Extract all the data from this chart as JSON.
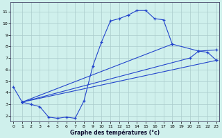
{
  "xlabel": "Graphe des températures (°c)",
  "background_color": "#cff0ec",
  "grid_color": "#aacccc",
  "line_color": "#2244cc",
  "ylim": [
    1.5,
    11.8
  ],
  "xlim": [
    -0.3,
    23.3
  ],
  "yticks": [
    2,
    3,
    4,
    5,
    6,
    7,
    8,
    9,
    10,
    11
  ],
  "xticks": [
    0,
    1,
    2,
    3,
    4,
    5,
    6,
    7,
    8,
    9,
    10,
    11,
    12,
    13,
    14,
    15,
    16,
    17,
    18,
    19,
    20,
    21,
    22,
    23
  ],
  "curve1_x": [
    0,
    1,
    2,
    3,
    4,
    5,
    6,
    7,
    8,
    9,
    10,
    11,
    12,
    13,
    14,
    15,
    16,
    17,
    18
  ],
  "curve1_y": [
    4.5,
    3.2,
    3.0,
    2.8,
    1.9,
    1.8,
    1.9,
    1.8,
    3.3,
    6.3,
    8.4,
    10.2,
    10.4,
    10.7,
    11.1,
    11.1,
    10.4,
    10.3,
    8.2
  ],
  "curve2_x": [
    1,
    23
  ],
  "curve2_y": [
    3.2,
    6.8
  ],
  "curve3_x": [
    1,
    20,
    21,
    23
  ],
  "curve3_y": [
    3.2,
    7.0,
    7.6,
    7.7
  ],
  "curve4_x": [
    1,
    18,
    21,
    22,
    23
  ],
  "curve4_y": [
    3.2,
    8.2,
    7.6,
    7.5,
    6.8
  ]
}
